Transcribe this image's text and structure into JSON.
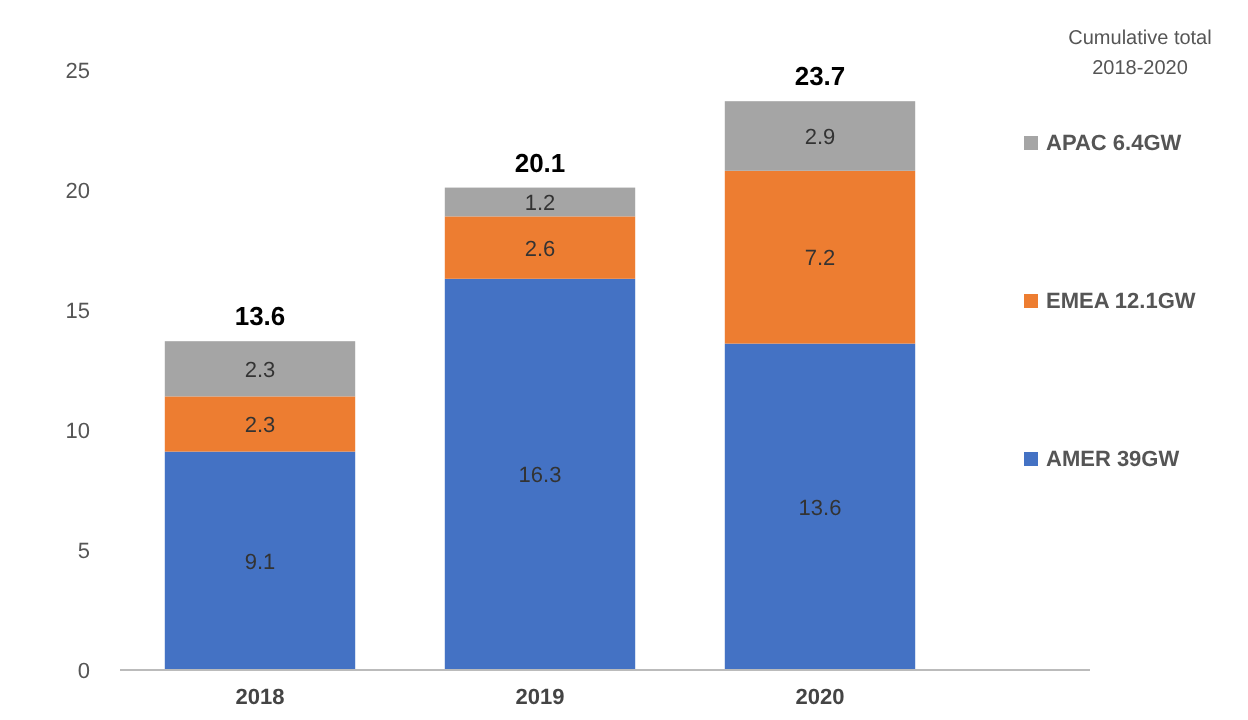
{
  "chart_data": {
    "type": "bar",
    "stacked": true,
    "categories": [
      "2018",
      "2019",
      "2020"
    ],
    "series": [
      {
        "name": "AMER 39GW",
        "color": "#4472c4",
        "values": [
          9.1,
          16.3,
          13.6
        ]
      },
      {
        "name": "EMEA 12.1GW",
        "color": "#ed7d31",
        "values": [
          2.3,
          2.6,
          7.2
        ]
      },
      {
        "name": "APAC 6.4GW",
        "color": "#a5a5a5",
        "values": [
          2.3,
          1.2,
          2.9
        ]
      }
    ],
    "ylim": [
      0,
      25
    ],
    "yticks": [
      0,
      5,
      10,
      15,
      20,
      25
    ],
    "data_labels": true,
    "totals": [
      "13.6",
      "20.1",
      "23.7"
    ],
    "legend": "right",
    "legend_title": "Cumulative total 2018-2020",
    "grid": false
  }
}
